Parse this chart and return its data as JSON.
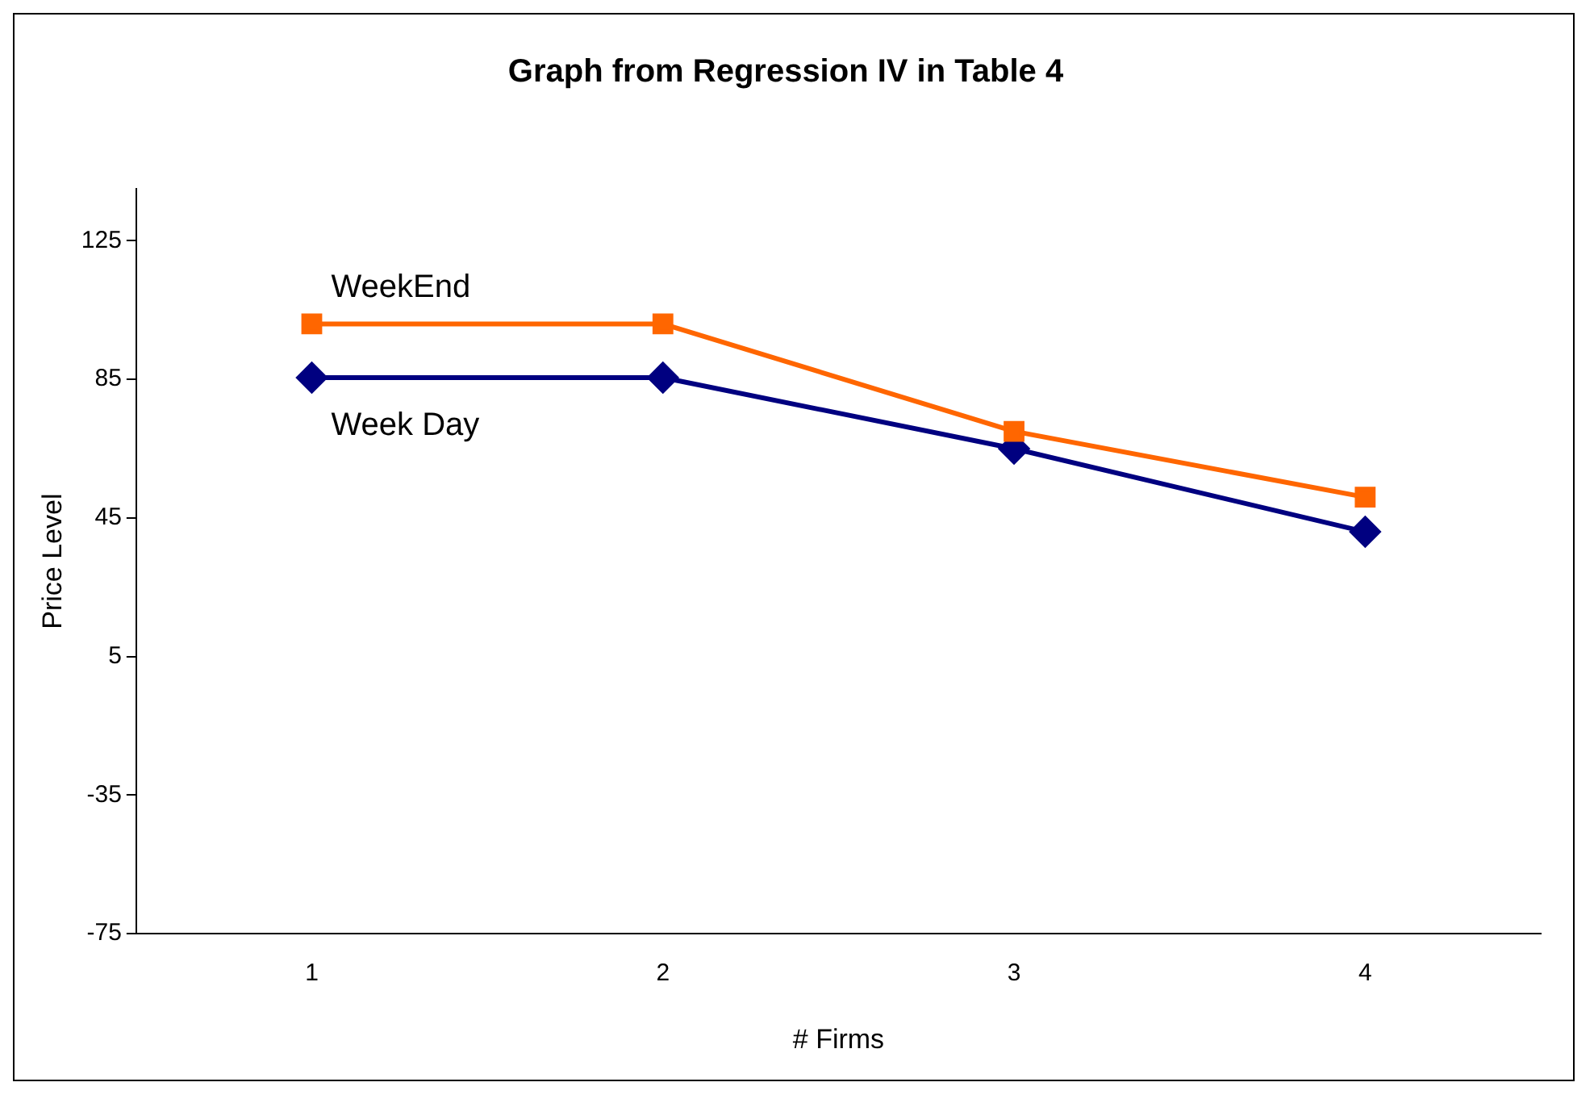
{
  "chart_data": {
    "type": "line",
    "title": "Graph from Regression IV in Table 4",
    "xlabel": "# Firms",
    "ylabel": "Price Level",
    "categories": [
      "1",
      "2",
      "3",
      "4"
    ],
    "series": [
      {
        "name": "WeekEnd",
        "color": "#ff6600",
        "marker": "square",
        "values": [
          101,
          101,
          70,
          51
        ]
      },
      {
        "name": "Week Day",
        "color": "#000080",
        "marker": "diamond",
        "values": [
          85.5,
          85.5,
          65,
          41
        ]
      }
    ],
    "ylim": [
      -75,
      140
    ],
    "yticks": [
      -75,
      -35,
      5,
      45,
      85,
      125
    ],
    "grid": false,
    "legend": false,
    "line_style": "solid"
  }
}
